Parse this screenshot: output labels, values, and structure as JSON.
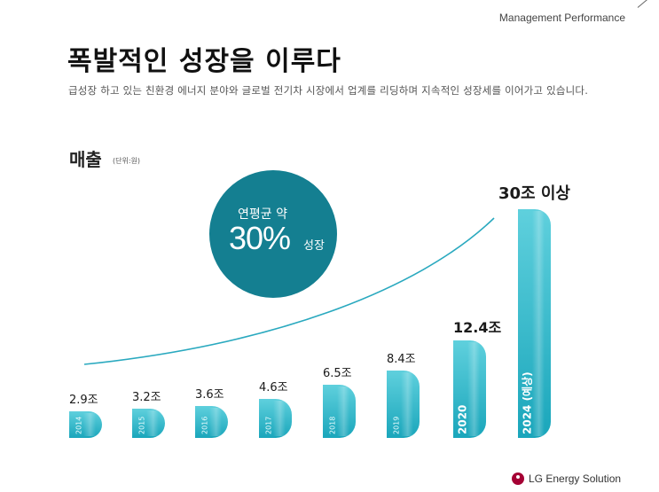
{
  "header": {
    "section_label": "Management Performance"
  },
  "title": "폭발적인 성장을 이루다",
  "subtitle": "급성장 하고 있는 친환경 에너지 분야와 글로벌 전기차 시장에서 업계를 리딩하며 지속적인 성장세를 이어가고 있습니다.",
  "sales": {
    "label": "매출",
    "unit": "(단위:원)"
  },
  "growth_badge": {
    "line1": "연평균 약",
    "percent": "30%",
    "word": "성장"
  },
  "colors": {
    "bar_top": "#5fd0dd",
    "bar_bottom": "#1aa6bb",
    "circle": "#147f91",
    "curve": "#2aa9bf"
  },
  "chart_data": {
    "type": "bar",
    "categories": [
      "2014",
      "2015",
      "2016",
      "2017",
      "2018",
      "2019",
      "2020",
      "2024 (예상)"
    ],
    "values": [
      2.9,
      3.2,
      3.6,
      4.6,
      6.5,
      8.4,
      12.4,
      30
    ],
    "value_labels": [
      "2.9조",
      "3.2조",
      "3.6조",
      "4.6조",
      "6.5조",
      "8.4조",
      "12.4조",
      "30조 이상"
    ],
    "unit": "조",
    "ylim": [
      0,
      30
    ]
  },
  "footer": {
    "logo_text": "LG Energy Solution"
  }
}
